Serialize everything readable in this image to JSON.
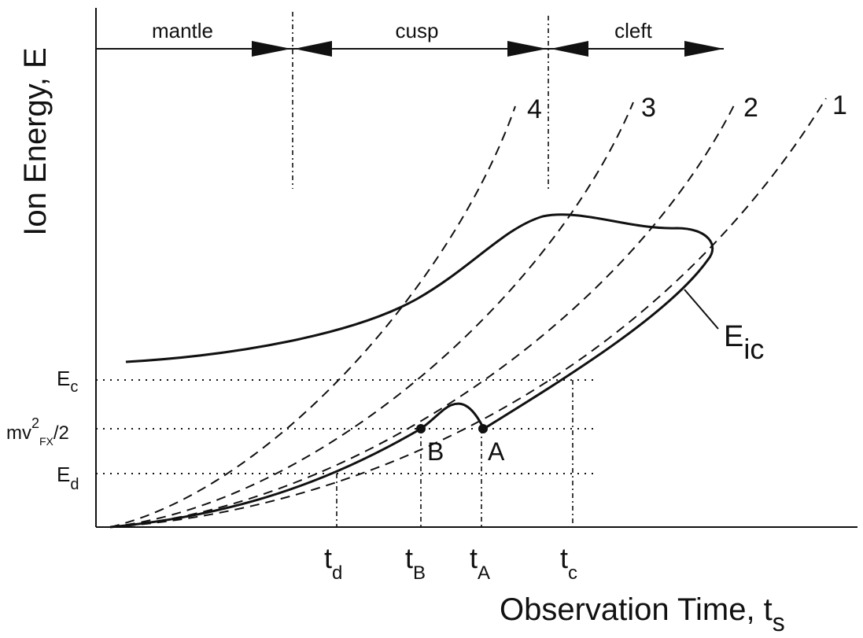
{
  "regions": [
    "mantle",
    "cusp",
    "cleft"
  ],
  "curve_labels": [
    "4",
    "3",
    "2",
    "1"
  ],
  "y_axis_label": "Ion Energy, E",
  "x_axis_label": {
    "main": "Observation Time, t",
    "sub": "s"
  },
  "curve_name": {
    "main": "E",
    "sub": "ic"
  },
  "energy_levels": [
    {
      "main": "E",
      "sub": "c"
    },
    {
      "main": "mv",
      "sup": "2",
      "sub": "FX",
      "tail": "/2"
    },
    {
      "main": "E",
      "sub": "d"
    }
  ],
  "times": [
    {
      "main": "t",
      "sub": "d"
    },
    {
      "main": "t",
      "sub": "B"
    },
    {
      "main": "t",
      "sub": "A"
    },
    {
      "main": "t",
      "sub": "c"
    }
  ],
  "points": [
    "B",
    "A"
  ]
}
